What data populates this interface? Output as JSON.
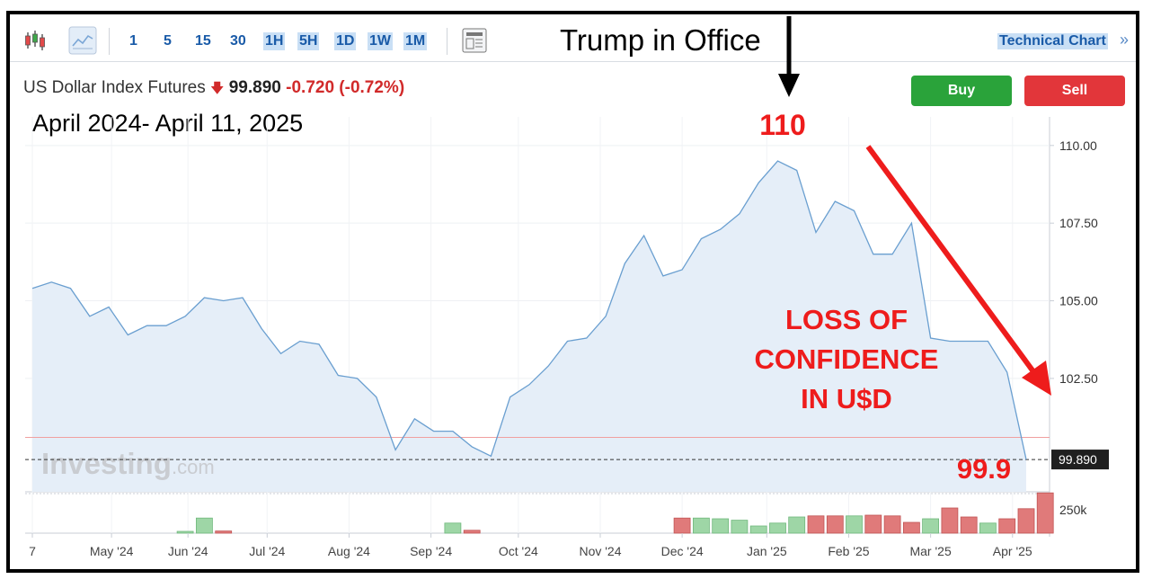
{
  "toolbar": {
    "candles_icon": "candlestick-icon",
    "area_icon": "area-chart-icon",
    "timeframes": [
      "1",
      "5",
      "15",
      "30",
      "1H",
      "5H",
      "1D",
      "1W",
      "1M"
    ],
    "highlighted": [
      "1H",
      "5H",
      "1D",
      "1W",
      "1M"
    ],
    "layout_icon": "layout-icon",
    "technical_chart": "Technical Chart",
    "more": "»"
  },
  "annotation_title": "Trump in Office",
  "instrument": {
    "name": "US Dollar Index Futures",
    "price": "99.890",
    "change": "-0.720",
    "change_pct": "(-0.72%)"
  },
  "buttons": {
    "buy": "Buy",
    "sell": "Sell"
  },
  "period_label": "April 2024- April 11, 2025",
  "watermark": {
    "main": "Investing",
    "suffix": ".com"
  },
  "annotations": {
    "peak": "110",
    "loss_lines": [
      "LOSS OF",
      "CONFIDENCE",
      "IN U$D"
    ],
    "last": "99.9"
  },
  "colors": {
    "line": "#6a9fd0",
    "area": "#e5eef8",
    "annotation_red": "#ee1c1c",
    "volume_up": "#9ed6a6",
    "volume_down": "#e07a7a",
    "ref_line": "#f0a0a0"
  },
  "chart_data": {
    "type": "area",
    "x": [
      "2024-04-07",
      "2024-04-14",
      "2024-04-21",
      "2024-04-28",
      "2024-05-05",
      "2024-05-12",
      "2024-05-19",
      "2024-05-26",
      "2024-06-02",
      "2024-06-09",
      "2024-06-16",
      "2024-06-23",
      "2024-06-30",
      "2024-07-07",
      "2024-07-14",
      "2024-07-21",
      "2024-07-28",
      "2024-08-04",
      "2024-08-11",
      "2024-08-18",
      "2024-08-25",
      "2024-09-01",
      "2024-09-08",
      "2024-09-15",
      "2024-09-22",
      "2024-09-29",
      "2024-10-06",
      "2024-10-13",
      "2024-10-20",
      "2024-10-27",
      "2024-11-03",
      "2024-11-10",
      "2024-11-17",
      "2024-11-24",
      "2024-12-01",
      "2024-12-08",
      "2024-12-15",
      "2024-12-22",
      "2024-12-29",
      "2025-01-05",
      "2025-01-12",
      "2025-01-19",
      "2025-01-26",
      "2025-02-02",
      "2025-02-09",
      "2025-02-16",
      "2025-02-23",
      "2025-03-02",
      "2025-03-09",
      "2025-03-16",
      "2025-03-23",
      "2025-03-30",
      "2025-04-06"
    ],
    "values": [
      105.4,
      105.6,
      105.4,
      104.5,
      104.8,
      103.9,
      104.2,
      104.2,
      104.5,
      105.1,
      105.0,
      105.1,
      104.1,
      103.3,
      103.7,
      103.6,
      102.6,
      102.5,
      101.9,
      100.2,
      101.2,
      100.8,
      100.8,
      100.3,
      100.0,
      101.9,
      102.3,
      102.9,
      103.7,
      103.8,
      104.5,
      106.2,
      107.1,
      105.8,
      106.0,
      107.0,
      107.3,
      107.8,
      108.8,
      109.5,
      109.2,
      107.2,
      108.2,
      107.9,
      106.5,
      106.5,
      107.5,
      103.8,
      103.7,
      103.7,
      103.7,
      102.7,
      99.89
    ],
    "volume": [
      {
        "x": "2024-06-02",
        "dir": "up",
        "size": 0.05
      },
      {
        "x": "2024-06-09",
        "dir": "up",
        "size": 0.42
      },
      {
        "x": "2024-06-16",
        "dir": "down",
        "size": 0.06
      },
      {
        "x": "2024-09-08",
        "dir": "up",
        "size": 0.28
      },
      {
        "x": "2024-09-15",
        "dir": "down",
        "size": 0.08
      },
      {
        "x": "2024-12-01",
        "dir": "down",
        "size": 0.42
      },
      {
        "x": "2024-12-08",
        "dir": "up",
        "size": 0.42
      },
      {
        "x": "2024-12-15",
        "dir": "up",
        "size": 0.4
      },
      {
        "x": "2024-12-22",
        "dir": "up",
        "size": 0.36
      },
      {
        "x": "2024-12-29",
        "dir": "up",
        "size": 0.2
      },
      {
        "x": "2025-01-05",
        "dir": "up",
        "size": 0.28
      },
      {
        "x": "2025-01-12",
        "dir": "up",
        "size": 0.45
      },
      {
        "x": "2025-01-19",
        "dir": "down",
        "size": 0.48
      },
      {
        "x": "2025-01-26",
        "dir": "down",
        "size": 0.48
      },
      {
        "x": "2025-02-02",
        "dir": "up",
        "size": 0.48
      },
      {
        "x": "2025-02-09",
        "dir": "down",
        "size": 0.5
      },
      {
        "x": "2025-02-16",
        "dir": "down",
        "size": 0.48
      },
      {
        "x": "2025-02-23",
        "dir": "down",
        "size": 0.3
      },
      {
        "x": "2025-03-02",
        "dir": "up",
        "size": 0.4
      },
      {
        "x": "2025-03-09",
        "dir": "down",
        "size": 0.7
      },
      {
        "x": "2025-03-16",
        "dir": "down",
        "size": 0.45
      },
      {
        "x": "2025-03-23",
        "dir": "up",
        "size": 0.28
      },
      {
        "x": "2025-03-30",
        "dir": "down",
        "size": 0.4
      },
      {
        "x": "2025-04-06",
        "dir": "down",
        "size": 0.68
      },
      {
        "x": "2025-04-13",
        "dir": "down",
        "size": 1.12
      }
    ],
    "x_ticks": [
      {
        "x": "2024-04-07",
        "label": "7"
      },
      {
        "x": "2024-05-06",
        "label": "May '24"
      },
      {
        "x": "2024-06-03",
        "label": "Jun '24"
      },
      {
        "x": "2024-07-02",
        "label": "Jul '24"
      },
      {
        "x": "2024-08-01",
        "label": "Aug '24"
      },
      {
        "x": "2024-08-31",
        "label": "Sep '24"
      },
      {
        "x": "2024-10-02",
        "label": "Oct '24"
      },
      {
        "x": "2024-11-01",
        "label": "Nov '24"
      },
      {
        "x": "2024-12-01",
        "label": "Dec '24"
      },
      {
        "x": "2025-01-01",
        "label": "Jan '25"
      },
      {
        "x": "2025-01-31",
        "label": "Feb '25"
      },
      {
        "x": "2025-03-02",
        "label": "Mar '25"
      },
      {
        "x": "2025-04-01",
        "label": "Apr '25"
      }
    ],
    "y_ticks": [
      110.0,
      107.5,
      105.0,
      102.5
    ],
    "y_tick_labels": [
      "110.00",
      "107.50",
      "105.00",
      "102.50"
    ],
    "ylim": [
      98.85,
      110.4
    ],
    "last_price_label": "99.890",
    "reference_line": 100.6,
    "volume_label": "250k",
    "grid": true
  }
}
